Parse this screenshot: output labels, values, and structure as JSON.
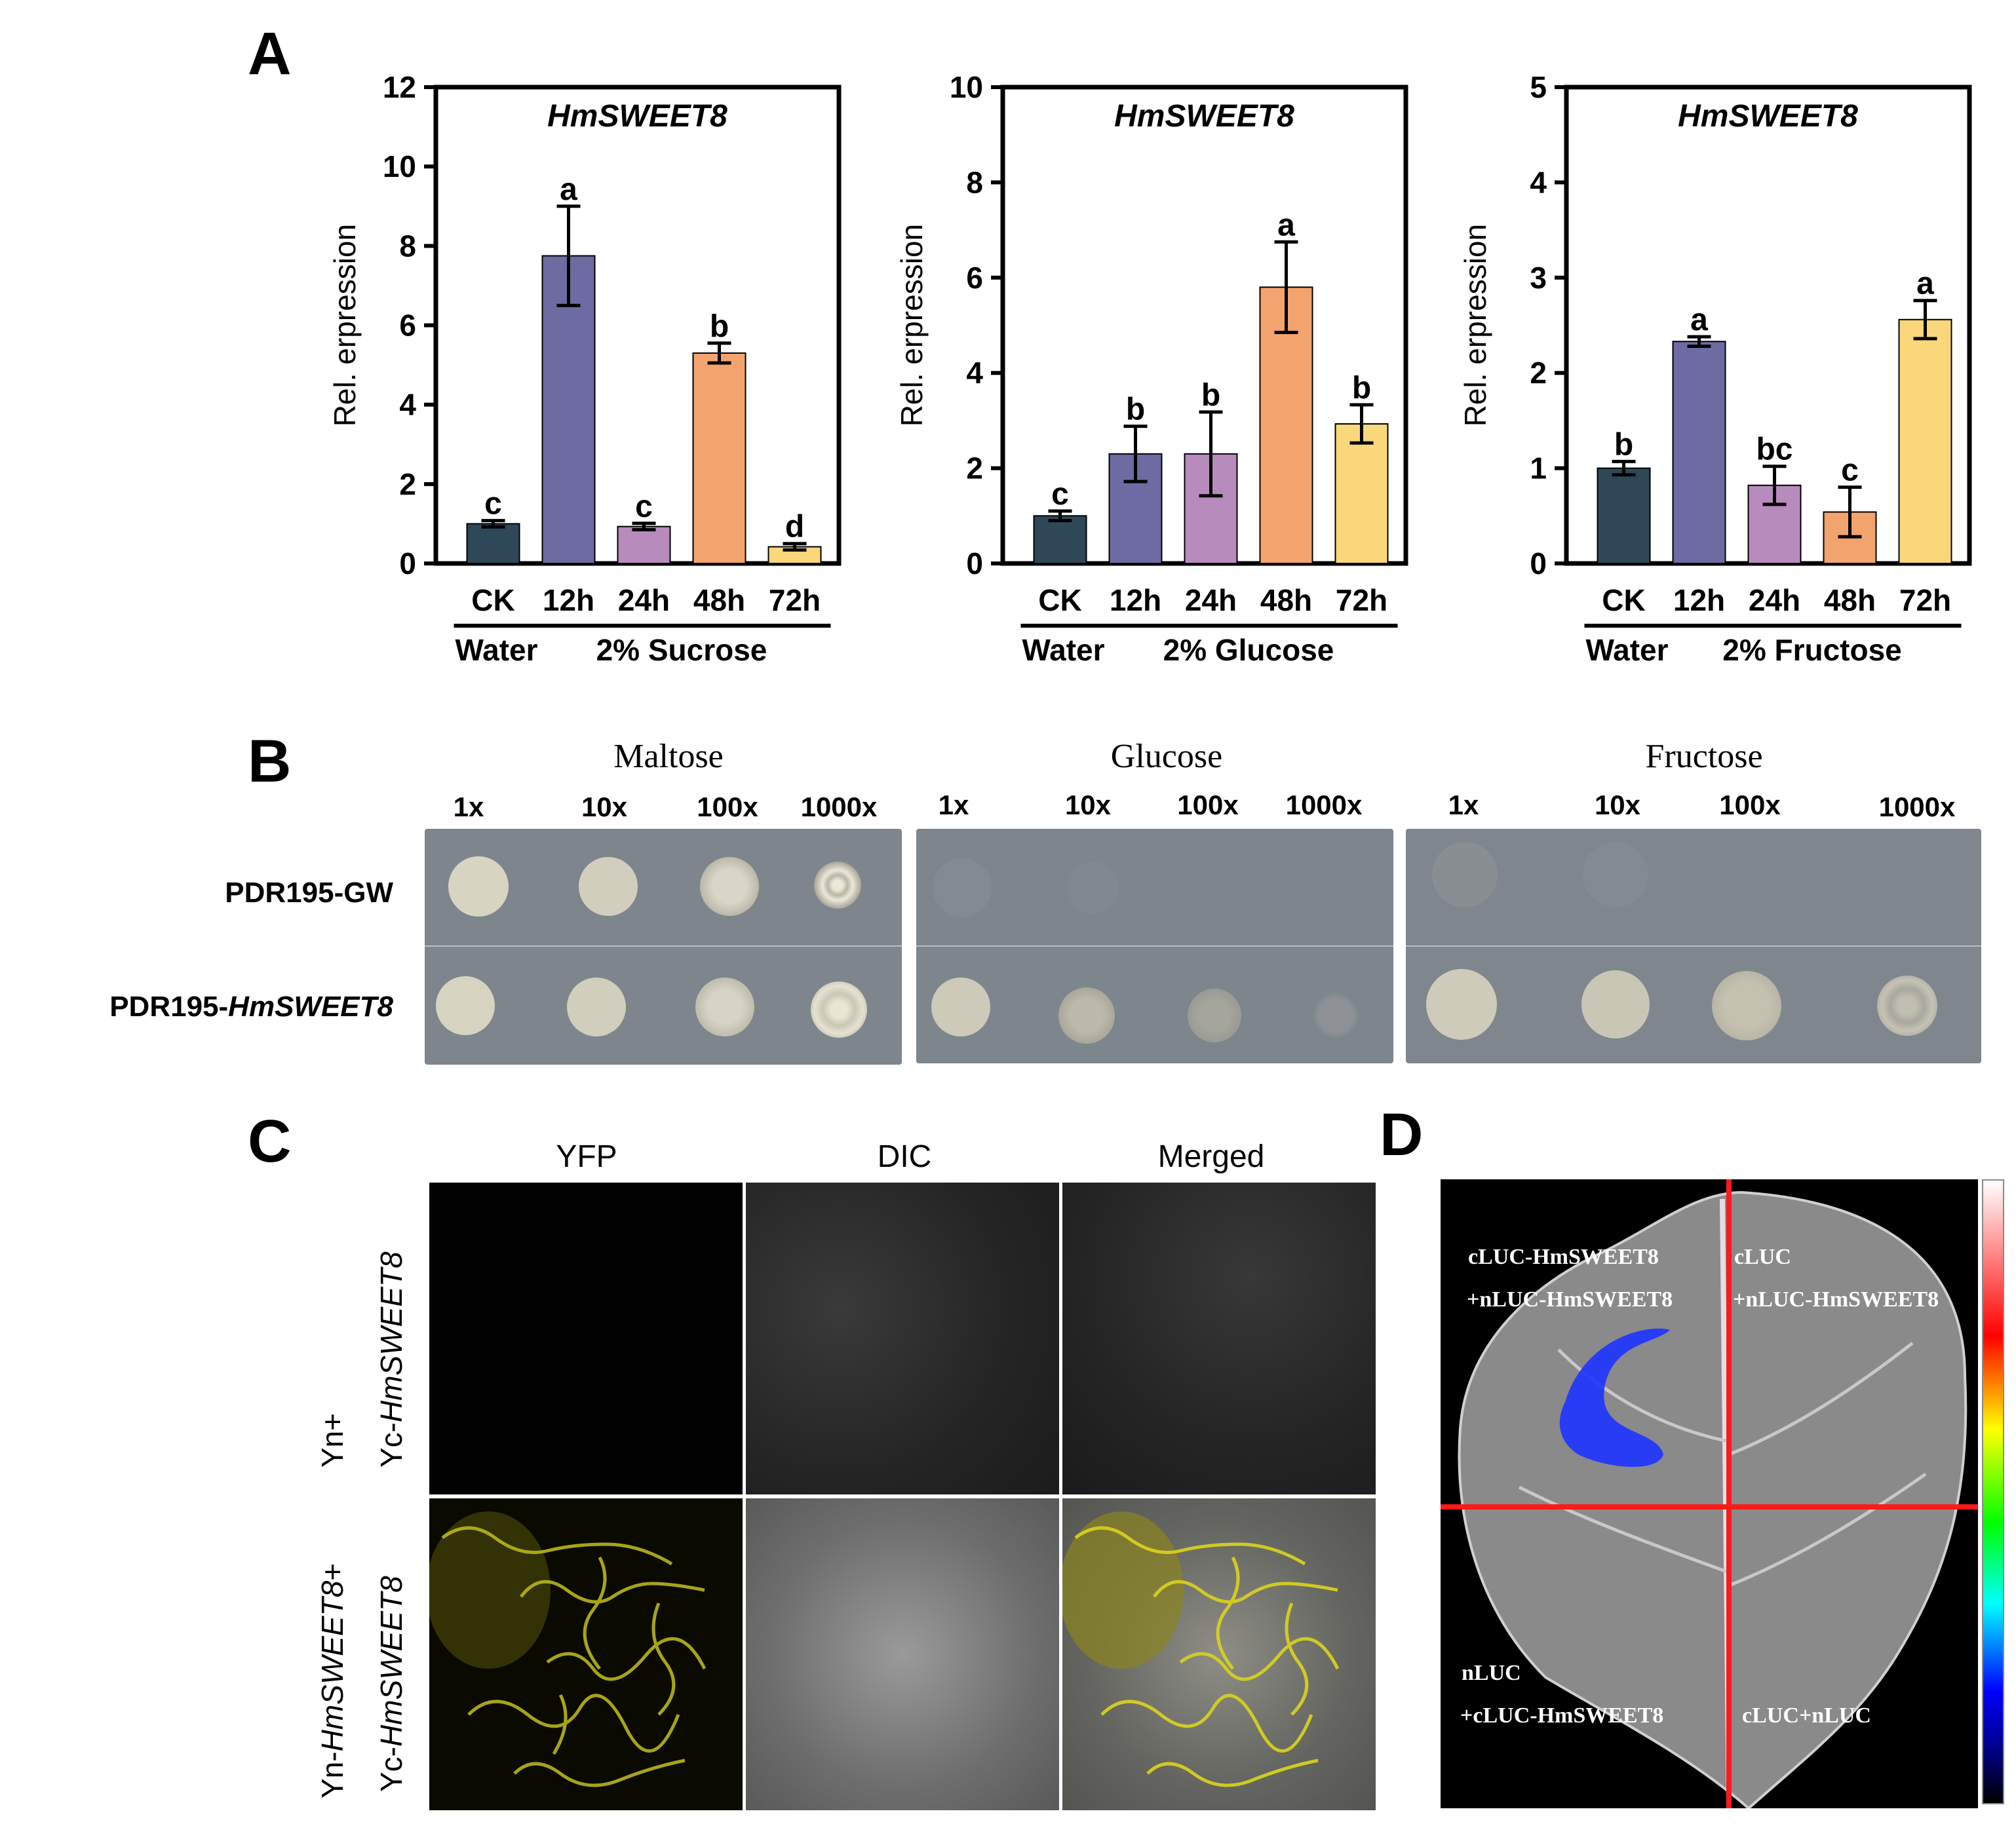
{
  "panels": {
    "a": "A",
    "b": "B",
    "c": "C",
    "d": "D"
  },
  "chart_data": [
    {
      "type": "bar",
      "title": "HmSWEET8",
      "ylabel": "Rel. erpression",
      "categories": [
        "CK",
        "12h",
        "24h",
        "48h",
        "72h"
      ],
      "values": [
        1.0,
        7.75,
        0.93,
        5.3,
        0.42
      ],
      "errors": [
        0.08,
        1.25,
        0.08,
        0.25,
        0.08
      ],
      "letters": [
        "c",
        "a",
        "c",
        "b",
        "d"
      ],
      "ylim": [
        0,
        12
      ],
      "yticks": [
        "0",
        "2",
        "4",
        "6",
        "8",
        "10",
        "12"
      ],
      "group_labels": [
        "Water",
        "2% Sucrose"
      ],
      "colors": [
        "#2f4858",
        "#6e6ba2",
        "#b88bbd",
        "#f3a46e",
        "#f9d77a"
      ]
    },
    {
      "type": "bar",
      "title": "HmSWEET8",
      "ylabel": "Rel. erpression",
      "categories": [
        "CK",
        "12h",
        "24h",
        "48h",
        "72h"
      ],
      "values": [
        1.0,
        2.3,
        2.3,
        5.8,
        2.93
      ],
      "errors": [
        0.1,
        0.58,
        0.88,
        0.95,
        0.4
      ],
      "letters": [
        "c",
        "b",
        "b",
        "a",
        "b"
      ],
      "ylim": [
        0,
        10
      ],
      "yticks": [
        "0",
        "2",
        "4",
        "6",
        "8",
        "10"
      ],
      "group_labels": [
        "Water",
        "2% Glucose"
      ],
      "colors": [
        "#2f4858",
        "#6e6ba2",
        "#b88bbd",
        "#f3a46e",
        "#f9d77a"
      ]
    },
    {
      "type": "bar",
      "title": "HmSWEET8",
      "ylabel": "Rel. erpression",
      "categories": [
        "CK",
        "12h",
        "24h",
        "48h",
        "72h"
      ],
      "values": [
        1.0,
        2.33,
        0.82,
        0.54,
        2.56
      ],
      "errors": [
        0.07,
        0.05,
        0.2,
        0.26,
        0.2
      ],
      "letters": [
        "b",
        "a",
        "bc",
        "c",
        "a"
      ],
      "ylim": [
        0,
        5
      ],
      "yticks": [
        "0",
        "1",
        "2",
        "3",
        "4",
        "5"
      ],
      "group_labels": [
        "Water",
        "2% Fructose"
      ],
      "colors": [
        "#2f4858",
        "#6e6ba2",
        "#b88bbd",
        "#f3a46e",
        "#f9d77a"
      ]
    }
  ],
  "panel_b": {
    "sugars": [
      "Maltose",
      "Glucose",
      "Fructose"
    ],
    "dilutions": [
      "1x",
      "10x",
      "100x",
      "1000x"
    ],
    "rows": [
      {
        "prefix": "PDR195-GW",
        "italic": ""
      },
      {
        "prefix": "PDR195-",
        "italic": "HmSWEET8"
      }
    ]
  },
  "panel_c": {
    "columns": [
      "YFP",
      "DIC",
      "Merged"
    ],
    "rows": [
      {
        "line1": "Yn+",
        "line2": "Yc-",
        "line2_italic": "HmSWEET8"
      },
      {
        "line1": "Yn-",
        "line1_italic": "HmSWEET8",
        "line1_suffix": "+",
        "line2": "Yc-",
        "line2_italic": "HmSWEET8"
      }
    ]
  },
  "panel_d": {
    "q1_line1": "cLUC-HmSWEET8",
    "q1_line2": "+nLUC-HmSWEET8",
    "q2_line1": "cLUC",
    "q2_line2": "+nLUC-HmSWEET8",
    "q3_line1": "nLUC",
    "q3_line2": "+cLUC-HmSWEET8",
    "q4_line1": "cLUC+nLUC"
  }
}
